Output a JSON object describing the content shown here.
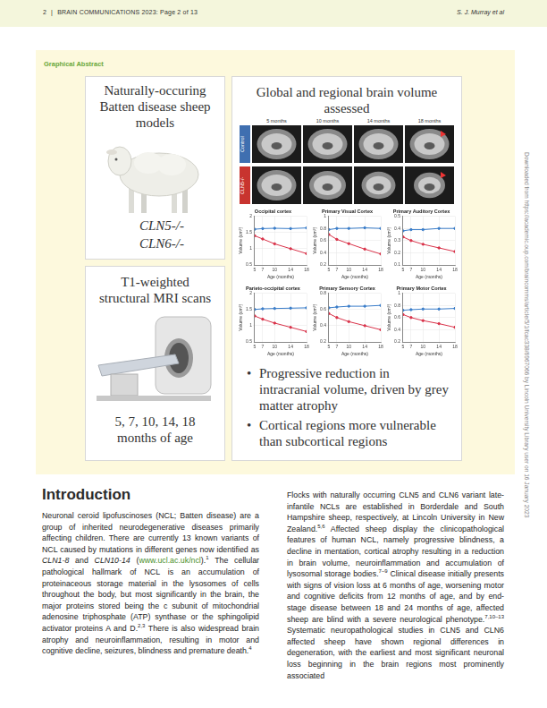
{
  "header": {
    "page": "2",
    "separator": "|",
    "journal": "BRAIN COMMUNICATIONS 2023: Page 2 of 13",
    "author": "S. J. Murray et al"
  },
  "side_note": "Downloaded from https://academic.oup.com/braincomms/article/5/1/fcac338/6967066 by Lincoln University Library user on 16 January 2023",
  "graphical_abstract": {
    "label": "Graphical Abstract",
    "models_panel": {
      "title": "Naturally-occuring Batten disease sheep models",
      "genotypes": [
        "CLN5-/-",
        "CLN6-/-"
      ]
    },
    "scan_panel": {
      "title": "T1-weighted structural MRI scans",
      "ages": "5, 7, 10, 14, 18 months of age"
    },
    "volume_panel": {
      "title": "Global and regional brain volume assessed",
      "mri_columns": [
        "5 months",
        "10 months",
        "14 months",
        "18 months"
      ],
      "mri_rows": [
        "Control",
        "CLN5-/-"
      ],
      "findings": [
        "Progressive reduction in intracranial volume, driven by grey matter atrophy",
        "Cortical regions more vulnerable than subcortical regions"
      ]
    }
  },
  "chart_data": [
    {
      "type": "line",
      "title": "Occipital cortex",
      "x_label": "Age (months)",
      "y_label": "Volume (cm³)",
      "x": [
        5,
        7,
        10,
        14,
        18
      ],
      "xlim": [
        5,
        18
      ],
      "xticks": [
        5,
        7,
        10,
        14,
        18
      ],
      "ylim": [
        0.5,
        2
      ],
      "yticks": [
        0.5,
        1,
        1.5,
        2
      ],
      "grid": true,
      "series": [
        {
          "color": "#3a7dc9",
          "values": [
            1.6,
            1.62,
            1.63,
            1.62,
            1.64
          ]
        },
        {
          "color": "#d9334a",
          "values": [
            1.4,
            1.3,
            1.15,
            1.0,
            0.85
          ]
        }
      ]
    },
    {
      "type": "line",
      "title": "Primary Visual Cortex",
      "x_label": "Age (months)",
      "y_label": "Volume (cm³)",
      "x": [
        5,
        7,
        10,
        14,
        18
      ],
      "xlim": [
        5,
        18
      ],
      "xticks": [
        5,
        7,
        10,
        14,
        18
      ],
      "ylim": [
        0.2,
        1
      ],
      "yticks": [
        0.2,
        0.4,
        0.6,
        0.8,
        1
      ],
      "grid": true,
      "series": [
        {
          "color": "#3a7dc9",
          "values": [
            0.78,
            0.8,
            0.8,
            0.81,
            0.8
          ]
        },
        {
          "color": "#d9334a",
          "values": [
            0.7,
            0.62,
            0.55,
            0.46,
            0.38
          ]
        }
      ]
    },
    {
      "type": "line",
      "title": "Primary Auditory Cortex",
      "x_label": "Age (months)",
      "y_label": "Volume (cm³)",
      "x": [
        5,
        7,
        10,
        14,
        18
      ],
      "xlim": [
        5,
        18
      ],
      "xticks": [
        5,
        7,
        10,
        14,
        18
      ],
      "ylim": [
        0.1,
        0.5
      ],
      "yticks": [
        0.1,
        0.2,
        0.3,
        0.4,
        0.5
      ],
      "grid": true,
      "series": [
        {
          "color": "#3a7dc9",
          "values": [
            0.38,
            0.39,
            0.39,
            0.4,
            0.4
          ]
        },
        {
          "color": "#d9334a",
          "values": [
            0.33,
            0.3,
            0.27,
            0.24,
            0.21
          ]
        }
      ]
    },
    {
      "type": "line",
      "title": "Parieto-occipital cortex",
      "x_label": "Age (months)",
      "y_label": "Volume (cm³)",
      "x": [
        5,
        7,
        10,
        14,
        18
      ],
      "xlim": [
        5,
        18
      ],
      "xticks": [
        5,
        7,
        10,
        14,
        18
      ],
      "ylim": [
        0.5,
        2
      ],
      "yticks": [
        0.5,
        1,
        1.5,
        2
      ],
      "grid": true,
      "series": [
        {
          "color": "#3a7dc9",
          "values": [
            1.5,
            1.52,
            1.53,
            1.54,
            1.55
          ]
        },
        {
          "color": "#d9334a",
          "values": [
            1.3,
            1.2,
            1.08,
            0.95,
            0.82
          ]
        }
      ]
    },
    {
      "type": "line",
      "title": "Primary Sensory Cortex",
      "x_label": "Age (months)",
      "y_label": "Volume (cm³)",
      "x": [
        5,
        7,
        10,
        14,
        18
      ],
      "xlim": [
        5,
        18
      ],
      "xticks": [
        5,
        7,
        10,
        14,
        18
      ],
      "ylim": [
        0.2,
        0.8
      ],
      "yticks": [
        0.2,
        0.4,
        0.6,
        0.8
      ],
      "grid": true,
      "series": [
        {
          "color": "#3a7dc9",
          "values": [
            0.62,
            0.63,
            0.64,
            0.64,
            0.65
          ]
        },
        {
          "color": "#d9334a",
          "values": [
            0.55,
            0.5,
            0.45,
            0.4,
            0.35
          ]
        }
      ]
    },
    {
      "type": "line",
      "title": "Primary Motor Cortex",
      "x_label": "Age (months)",
      "y_label": "Volume (cm³)",
      "x": [
        5,
        7,
        10,
        14,
        18
      ],
      "xlim": [
        5,
        18
      ],
      "xticks": [
        5,
        7,
        10,
        14,
        18
      ],
      "ylim": [
        0.2,
        1
      ],
      "yticks": [
        0.2,
        0.4,
        0.6,
        0.8,
        1
      ],
      "grid": true,
      "series": [
        {
          "color": "#3a7dc9",
          "values": [
            0.72,
            0.73,
            0.74,
            0.74,
            0.75
          ]
        },
        {
          "color": "#d9334a",
          "values": [
            0.65,
            0.6,
            0.55,
            0.5,
            0.44
          ]
        }
      ]
    }
  ],
  "introduction": {
    "heading": "Introduction",
    "columns": [
      [
        "Neuronal ceroid lipofuscinoses (NCL; Batten disease) are a group of inherited neurodegenerative diseases primarily affecting children. There are currently 13 known variants of NCL caused by mutations in different genes now identified as ",
        {
          "i": "CLN1-8"
        },
        " and ",
        {
          "i": "CLN10-14"
        },
        " (",
        {
          "link": "www.ucl.ac.uk/ncl"
        },
        ").",
        {
          "sup": "1"
        },
        " The cellular pathological hallmark of NCL is an accumulation of proteinaceous storage material in the lysosomes of cells throughout the body, but most significantly in the brain, the major proteins stored being the c subunit of mitochondrial adenosine triphosphate (ATP) synthase or the sphingolipid activator proteins A and D.",
        {
          "sup": "2,3"
        },
        " There is also widespread brain atrophy and neuroinflammation, resulting in motor and cognitive decline, seizures, blindness and premature death.",
        {
          "sup": "4"
        }
      ],
      [
        "Flocks with naturally occurring CLN5 and CLN6 variant late-infantile NCLs are established in Borderdale and South Hampshire sheep, respectively, at Lincoln University in New Zealand.",
        {
          "sup": "5,6"
        },
        " Affected sheep display the clinicopathological features of human NCL, namely progressive blindness, a decline in mentation, cortical atrophy resulting in a reduction in brain volume, neuroinflammation and accumulation of lysosomal storage bodies.",
        {
          "sup": "7–9"
        },
        " Clinical disease initially presents with signs of vision loss at 6 months of age, worsening motor and cognitive deficits from 12 months of age, and by end-stage disease between 18 and 24 months of age, affected sheep are blind with a severe neurological phenotype.",
        {
          "sup": "7,10–13"
        },
        " Systematic neuropathological studies in CLN5 and CLN6 affected sheep have shown regional differences in degeneration, with the earliest and most significant neuronal loss beginning in the brain regions most prominently associated"
      ]
    ]
  }
}
